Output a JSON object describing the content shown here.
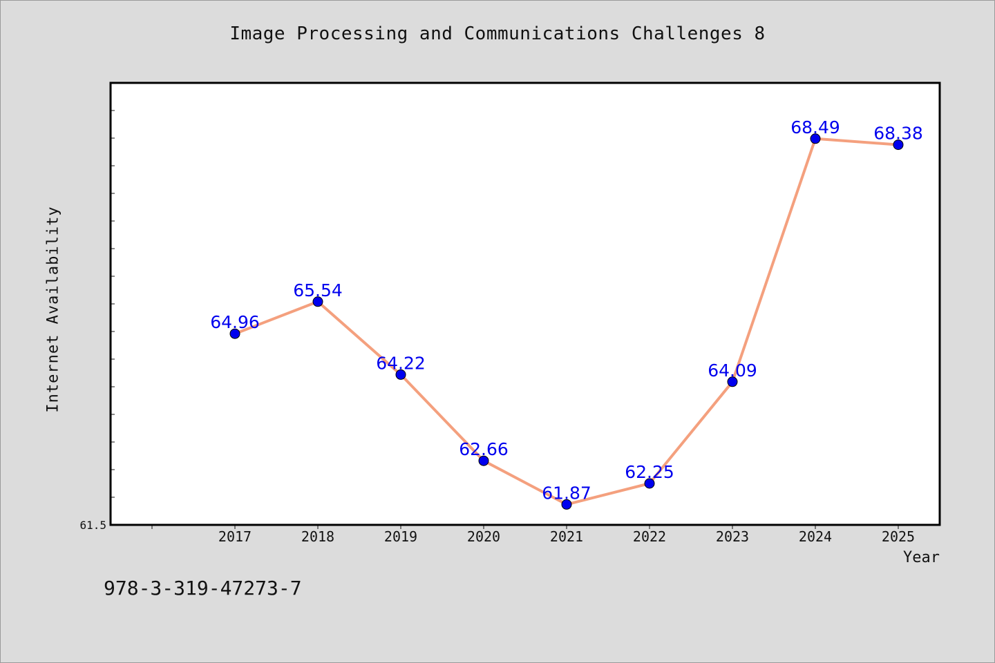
{
  "chart_data": {
    "type": "line",
    "title": "Image Processing and Communications Challenges 8",
    "xlabel": "Year",
    "ylabel": "Internet Availability",
    "categories": [
      "2017",
      "2018",
      "2019",
      "2020",
      "2021",
      "2022",
      "2023",
      "2024",
      "2025"
    ],
    "series": [
      {
        "values": [
          64.96,
          65.54,
          64.22,
          62.66,
          61.87,
          62.25,
          64.09,
          68.49,
          68.38
        ],
        "labels": [
          "64.96",
          "65.54",
          "64.22",
          "62.66",
          "61.87",
          "62.25",
          "64.09",
          "68.49",
          "68.38"
        ]
      }
    ],
    "y_tick_labels": [
      "61.5"
    ],
    "ylim": [
      61.5,
      69.5
    ],
    "grid": false,
    "legend": "none",
    "colors": {
      "line": "#f4a07e",
      "marker": "#0000ee",
      "label": "#0000ee",
      "background": "#dcdcdc",
      "plot_background": "#ffffff"
    }
  },
  "footnote": "978-3-319-47273-7"
}
